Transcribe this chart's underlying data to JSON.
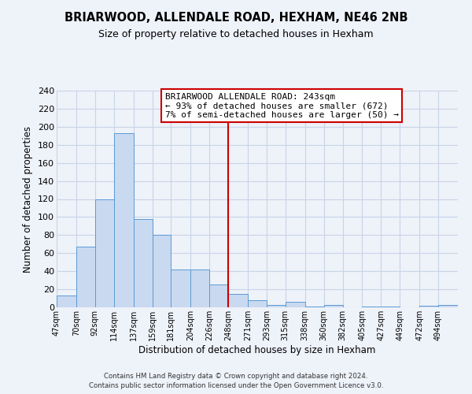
{
  "title": "BRIARWOOD, ALLENDALE ROAD, HEXHAM, NE46 2NB",
  "subtitle": "Size of property relative to detached houses in Hexham",
  "xlabel": "Distribution of detached houses by size in Hexham",
  "ylabel": "Number of detached properties",
  "bar_labels": [
    "47sqm",
    "70sqm",
    "92sqm",
    "114sqm",
    "137sqm",
    "159sqm",
    "181sqm",
    "204sqm",
    "226sqm",
    "248sqm",
    "271sqm",
    "293sqm",
    "315sqm",
    "338sqm",
    "360sqm",
    "382sqm",
    "405sqm",
    "427sqm",
    "449sqm",
    "472sqm",
    "494sqm"
  ],
  "bar_values": [
    13,
    67,
    120,
    193,
    98,
    80,
    42,
    42,
    25,
    15,
    8,
    3,
    6,
    1,
    3,
    0,
    1,
    1,
    0,
    2,
    3
  ],
  "bin_edges": [
    47,
    70,
    92,
    114,
    137,
    159,
    181,
    204,
    226,
    248,
    271,
    293,
    315,
    338,
    360,
    382,
    405,
    427,
    449,
    472,
    494,
    517
  ],
  "bar_color": "#c9d9f0",
  "bar_edge_color": "#5b9bd5",
  "vline_x": 248,
  "vline_color": "#cc0000",
  "ylim": [
    0,
    240
  ],
  "yticks": [
    0,
    20,
    40,
    60,
    80,
    100,
    120,
    140,
    160,
    180,
    200,
    220,
    240
  ],
  "grid_color": "#c8d4e8",
  "annotation_title": "BRIARWOOD ALLENDALE ROAD: 243sqm",
  "annotation_line1": "← 93% of detached houses are smaller (672)",
  "annotation_line2": "7% of semi-detached houses are larger (50) →",
  "annotation_box_color": "#ffffff",
  "annotation_box_edge_color": "#cc0000",
  "footer1": "Contains HM Land Registry data © Crown copyright and database right 2024.",
  "footer2": "Contains public sector information licensed under the Open Government Licence v3.0.",
  "background_color": "#eef2f9",
  "title_fontsize": 10.5,
  "subtitle_fontsize": 9
}
